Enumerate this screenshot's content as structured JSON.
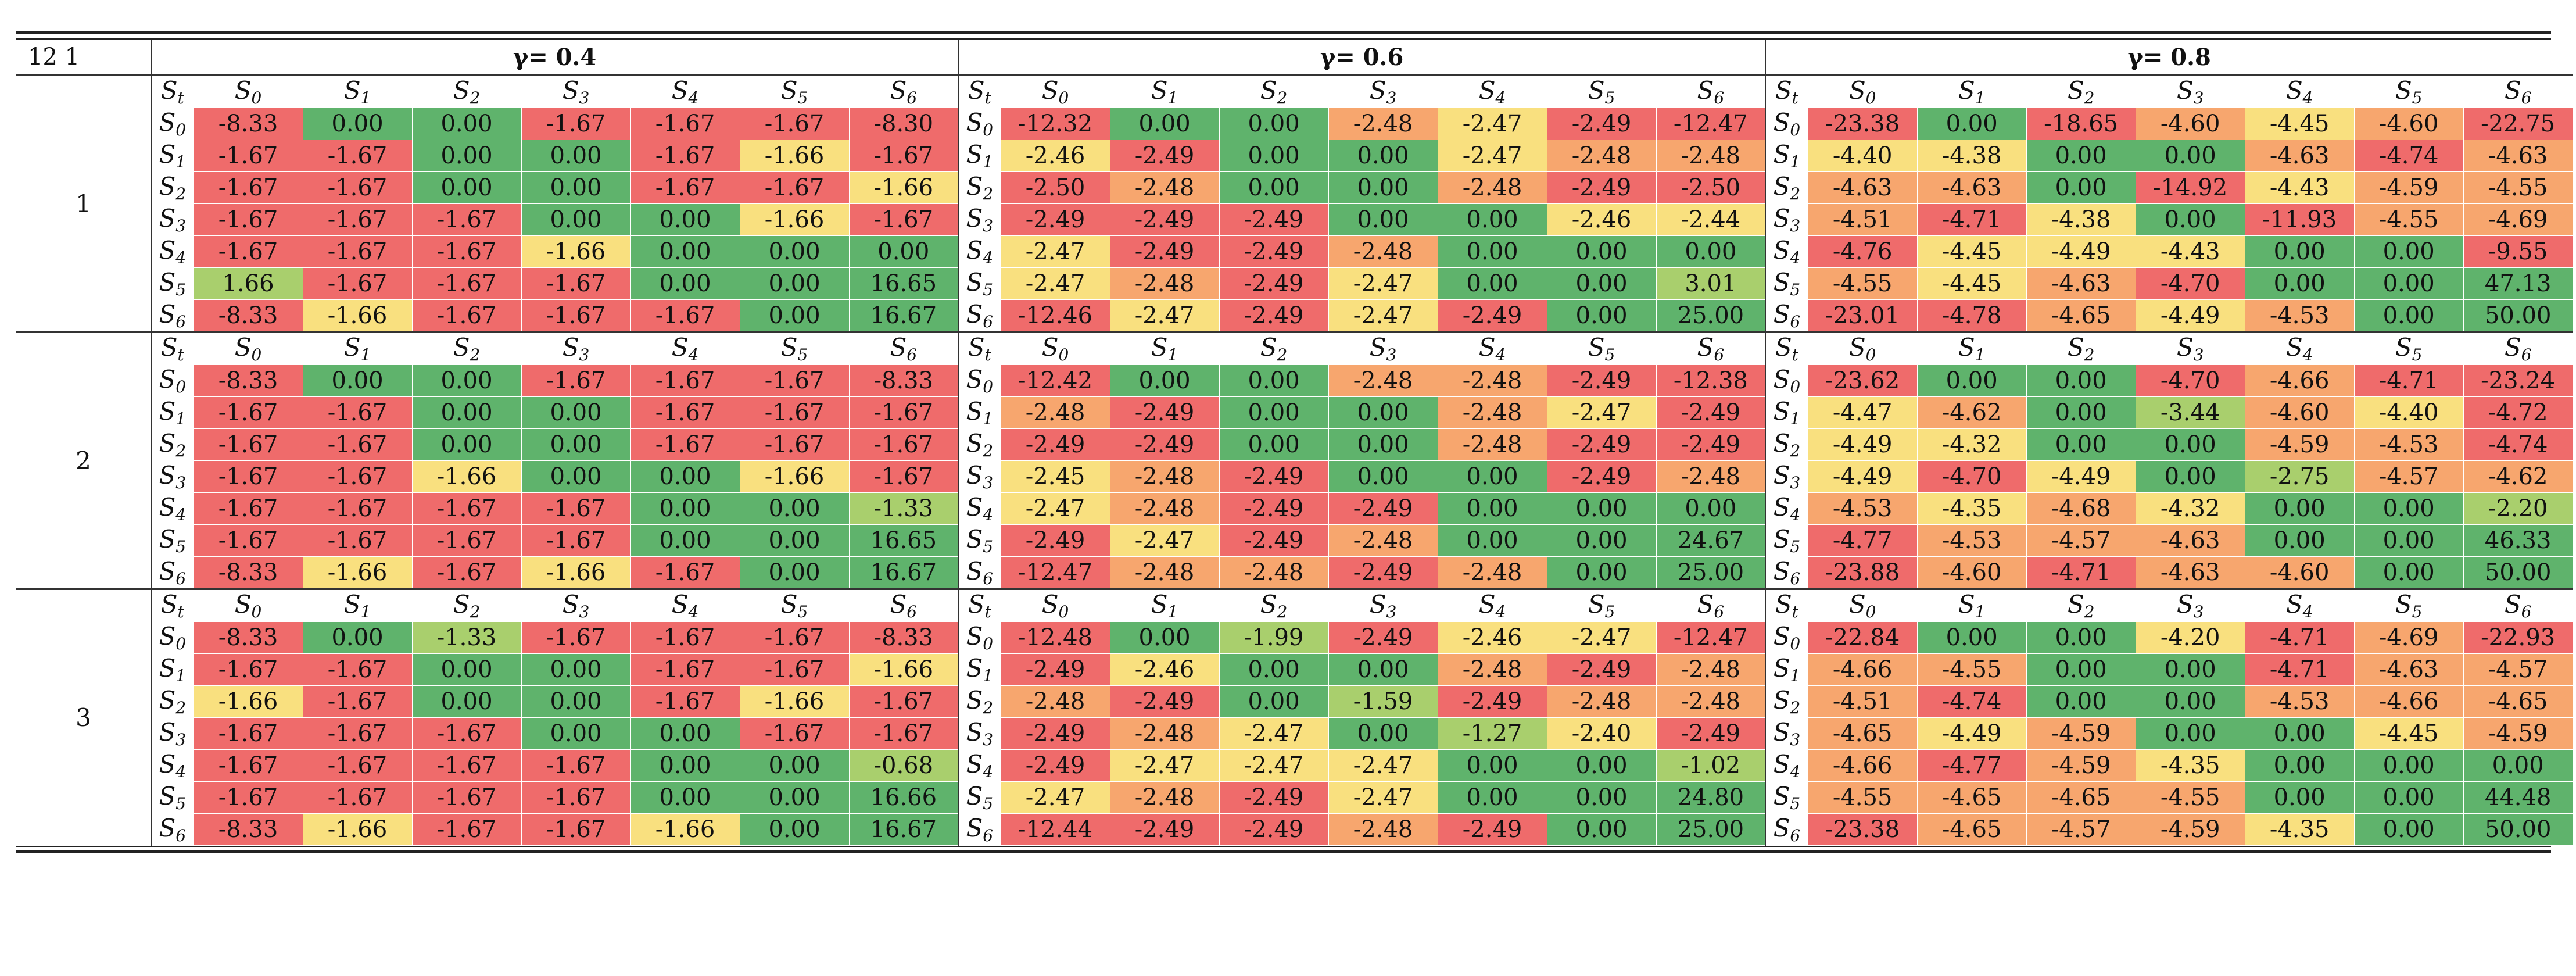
{
  "corner_label": "12  1",
  "gamma_headers": [
    "γ= 0.4",
    "γ= 0.6",
    "γ= 0.8"
  ],
  "state_header": "S",
  "state_header_sub": "t",
  "state_labels": [
    "S0",
    "S1",
    "S2",
    "S3",
    "S4",
    "S5",
    "S6"
  ],
  "state_subs": [
    "0",
    "1",
    "2",
    "3",
    "4",
    "5",
    "6"
  ],
  "blocks": [
    {
      "label": "1",
      "gammas": [
        [
          [
            "-8.33",
            "0.00",
            "0.00",
            "-1.67",
            "-1.67",
            "-1.67",
            "-8.30"
          ],
          [
            "-1.67",
            "-1.67",
            "0.00",
            "0.00",
            "-1.67",
            "-1.66",
            "-1.67"
          ],
          [
            "-1.67",
            "-1.67",
            "0.00",
            "0.00",
            "-1.67",
            "-1.67",
            "-1.66"
          ],
          [
            "-1.67",
            "-1.67",
            "-1.67",
            "0.00",
            "0.00",
            "-1.66",
            "-1.67"
          ],
          [
            "-1.67",
            "-1.67",
            "-1.67",
            "-1.66",
            "0.00",
            "0.00",
            "0.00"
          ],
          [
            "1.66",
            "-1.67",
            "-1.67",
            "-1.67",
            "0.00",
            "0.00",
            "16.65"
          ],
          [
            "-8.33",
            "-1.66",
            "-1.67",
            "-1.67",
            "-1.67",
            "0.00",
            "16.67"
          ]
        ],
        [
          [
            "-12.32",
            "0.00",
            "0.00",
            "-2.48",
            "-2.47",
            "-2.49",
            "-12.47"
          ],
          [
            "-2.46",
            "-2.49",
            "0.00",
            "0.00",
            "-2.47",
            "-2.48",
            "-2.48"
          ],
          [
            "-2.50",
            "-2.48",
            "0.00",
            "0.00",
            "-2.48",
            "-2.49",
            "-2.50"
          ],
          [
            "-2.49",
            "-2.49",
            "-2.49",
            "0.00",
            "0.00",
            "-2.46",
            "-2.44"
          ],
          [
            "-2.47",
            "-2.49",
            "-2.49",
            "-2.48",
            "0.00",
            "0.00",
            "0.00"
          ],
          [
            "-2.47",
            "-2.48",
            "-2.49",
            "-2.47",
            "0.00",
            "0.00",
            "3.01"
          ],
          [
            "-12.46",
            "-2.47",
            "-2.49",
            "-2.47",
            "-2.49",
            "0.00",
            "25.00"
          ]
        ],
        [
          [
            "-23.38",
            "0.00",
            "-18.65",
            "-4.60",
            "-4.45",
            "-4.60",
            "-22.75"
          ],
          [
            "-4.40",
            "-4.38",
            "0.00",
            "0.00",
            "-4.63",
            "-4.74",
            "-4.63"
          ],
          [
            "-4.63",
            "-4.63",
            "0.00",
            "-14.92",
            "-4.43",
            "-4.59",
            "-4.55"
          ],
          [
            "-4.51",
            "-4.71",
            "-4.38",
            "0.00",
            "-11.93",
            "-4.55",
            "-4.69"
          ],
          [
            "-4.76",
            "-4.45",
            "-4.49",
            "-4.43",
            "0.00",
            "0.00",
            "-9.55"
          ],
          [
            "-4.55",
            "-4.45",
            "-4.63",
            "-4.70",
            "0.00",
            "0.00",
            "47.13"
          ],
          [
            "-23.01",
            "-4.78",
            "-4.65",
            "-4.49",
            "-4.53",
            "0.00",
            "50.00"
          ]
        ]
      ]
    },
    {
      "label": "2",
      "gammas": [
        [
          [
            "-8.33",
            "0.00",
            "0.00",
            "-1.67",
            "-1.67",
            "-1.67",
            "-8.33"
          ],
          [
            "-1.67",
            "-1.67",
            "0.00",
            "0.00",
            "-1.67",
            "-1.67",
            "-1.67"
          ],
          [
            "-1.67",
            "-1.67",
            "0.00",
            "0.00",
            "-1.67",
            "-1.67",
            "-1.67"
          ],
          [
            "-1.67",
            "-1.67",
            "-1.66",
            "0.00",
            "0.00",
            "-1.66",
            "-1.67"
          ],
          [
            "-1.67",
            "-1.67",
            "-1.67",
            "-1.67",
            "0.00",
            "0.00",
            "-1.33"
          ],
          [
            "-1.67",
            "-1.67",
            "-1.67",
            "-1.67",
            "0.00",
            "0.00",
            "16.65"
          ],
          [
            "-8.33",
            "-1.66",
            "-1.67",
            "-1.66",
            "-1.67",
            "0.00",
            "16.67"
          ]
        ],
        [
          [
            "-12.42",
            "0.00",
            "0.00",
            "-2.48",
            "-2.48",
            "-2.49",
            "-12.38"
          ],
          [
            "-2.48",
            "-2.49",
            "0.00",
            "0.00",
            "-2.48",
            "-2.47",
            "-2.49"
          ],
          [
            "-2.49",
            "-2.49",
            "0.00",
            "0.00",
            "-2.48",
            "-2.49",
            "-2.49"
          ],
          [
            "-2.45",
            "-2.48",
            "-2.49",
            "0.00",
            "0.00",
            "-2.49",
            "-2.48"
          ],
          [
            "-2.47",
            "-2.48",
            "-2.49",
            "-2.49",
            "0.00",
            "0.00",
            "0.00"
          ],
          [
            "-2.49",
            "-2.47",
            "-2.49",
            "-2.48",
            "0.00",
            "0.00",
            "24.67"
          ],
          [
            "-12.47",
            "-2.48",
            "-2.48",
            "-2.49",
            "-2.48",
            "0.00",
            "25.00"
          ]
        ],
        [
          [
            "-23.62",
            "0.00",
            "0.00",
            "-4.70",
            "-4.66",
            "-4.71",
            "-23.24"
          ],
          [
            "-4.47",
            "-4.62",
            "0.00",
            "-3.44",
            "-4.60",
            "-4.40",
            "-4.72"
          ],
          [
            "-4.49",
            "-4.32",
            "0.00",
            "0.00",
            "-4.59",
            "-4.53",
            "-4.74"
          ],
          [
            "-4.49",
            "-4.70",
            "-4.49",
            "0.00",
            "-2.75",
            "-4.57",
            "-4.62"
          ],
          [
            "-4.53",
            "-4.35",
            "-4.68",
            "-4.32",
            "0.00",
            "0.00",
            "-2.20"
          ],
          [
            "-4.77",
            "-4.53",
            "-4.57",
            "-4.63",
            "0.00",
            "0.00",
            "46.33"
          ],
          [
            "-23.88",
            "-4.60",
            "-4.71",
            "-4.63",
            "-4.60",
            "0.00",
            "50.00"
          ]
        ]
      ]
    },
    {
      "label": "3",
      "gammas": [
        [
          [
            "-8.33",
            "0.00",
            "-1.33",
            "-1.67",
            "-1.67",
            "-1.67",
            "-8.33"
          ],
          [
            "-1.67",
            "-1.67",
            "0.00",
            "0.00",
            "-1.67",
            "-1.67",
            "-1.66"
          ],
          [
            "-1.66",
            "-1.67",
            "0.00",
            "0.00",
            "-1.67",
            "-1.66",
            "-1.67"
          ],
          [
            "-1.67",
            "-1.67",
            "-1.67",
            "0.00",
            "0.00",
            "-1.67",
            "-1.67"
          ],
          [
            "-1.67",
            "-1.67",
            "-1.67",
            "-1.67",
            "0.00",
            "0.00",
            "-0.68"
          ],
          [
            "-1.67",
            "-1.67",
            "-1.67",
            "-1.67",
            "0.00",
            "0.00",
            "16.66"
          ],
          [
            "-8.33",
            "-1.66",
            "-1.67",
            "-1.67",
            "-1.66",
            "0.00",
            "16.67"
          ]
        ],
        [
          [
            "-12.48",
            "0.00",
            "-1.99",
            "-2.49",
            "-2.46",
            "-2.47",
            "-12.47"
          ],
          [
            "-2.49",
            "-2.46",
            "0.00",
            "0.00",
            "-2.48",
            "-2.49",
            "-2.48"
          ],
          [
            "-2.48",
            "-2.49",
            "0.00",
            "-1.59",
            "-2.49",
            "-2.48",
            "-2.48"
          ],
          [
            "-2.49",
            "-2.48",
            "-2.47",
            "0.00",
            "-1.27",
            "-2.40",
            "-2.49"
          ],
          [
            "-2.49",
            "-2.47",
            "-2.47",
            "-2.47",
            "0.00",
            "0.00",
            "-1.02"
          ],
          [
            "-2.47",
            "-2.48",
            "-2.49",
            "-2.47",
            "0.00",
            "0.00",
            "24.80"
          ],
          [
            "-12.44",
            "-2.49",
            "-2.49",
            "-2.48",
            "-2.49",
            "0.00",
            "25.00"
          ]
        ],
        [
          [
            "-22.84",
            "0.00",
            "0.00",
            "-4.20",
            "-4.71",
            "-4.69",
            "-22.93"
          ],
          [
            "-4.66",
            "-4.55",
            "0.00",
            "0.00",
            "-4.71",
            "-4.63",
            "-4.57"
          ],
          [
            "-4.51",
            "-4.74",
            "0.00",
            "0.00",
            "-4.53",
            "-4.66",
            "-4.65"
          ],
          [
            "-4.65",
            "-4.49",
            "-4.59",
            "0.00",
            "0.00",
            "-4.45",
            "-4.59"
          ],
          [
            "-4.66",
            "-4.77",
            "-4.59",
            "-4.35",
            "0.00",
            "0.00",
            "0.00"
          ],
          [
            "-4.55",
            "-4.65",
            "-4.65",
            "-4.55",
            "0.00",
            "0.00",
            "44.48"
          ],
          [
            "-23.38",
            "-4.65",
            "-4.57",
            "-4.59",
            "-4.35",
            "0.00",
            "50.00"
          ]
        ]
      ]
    }
  ],
  "colors": {
    "red": "#ef6b6b",
    "orange": "#f7a66e",
    "yellow": "#f9e07f",
    "light_green": "#a9cf6d",
    "green": "#5fb36c"
  }
}
